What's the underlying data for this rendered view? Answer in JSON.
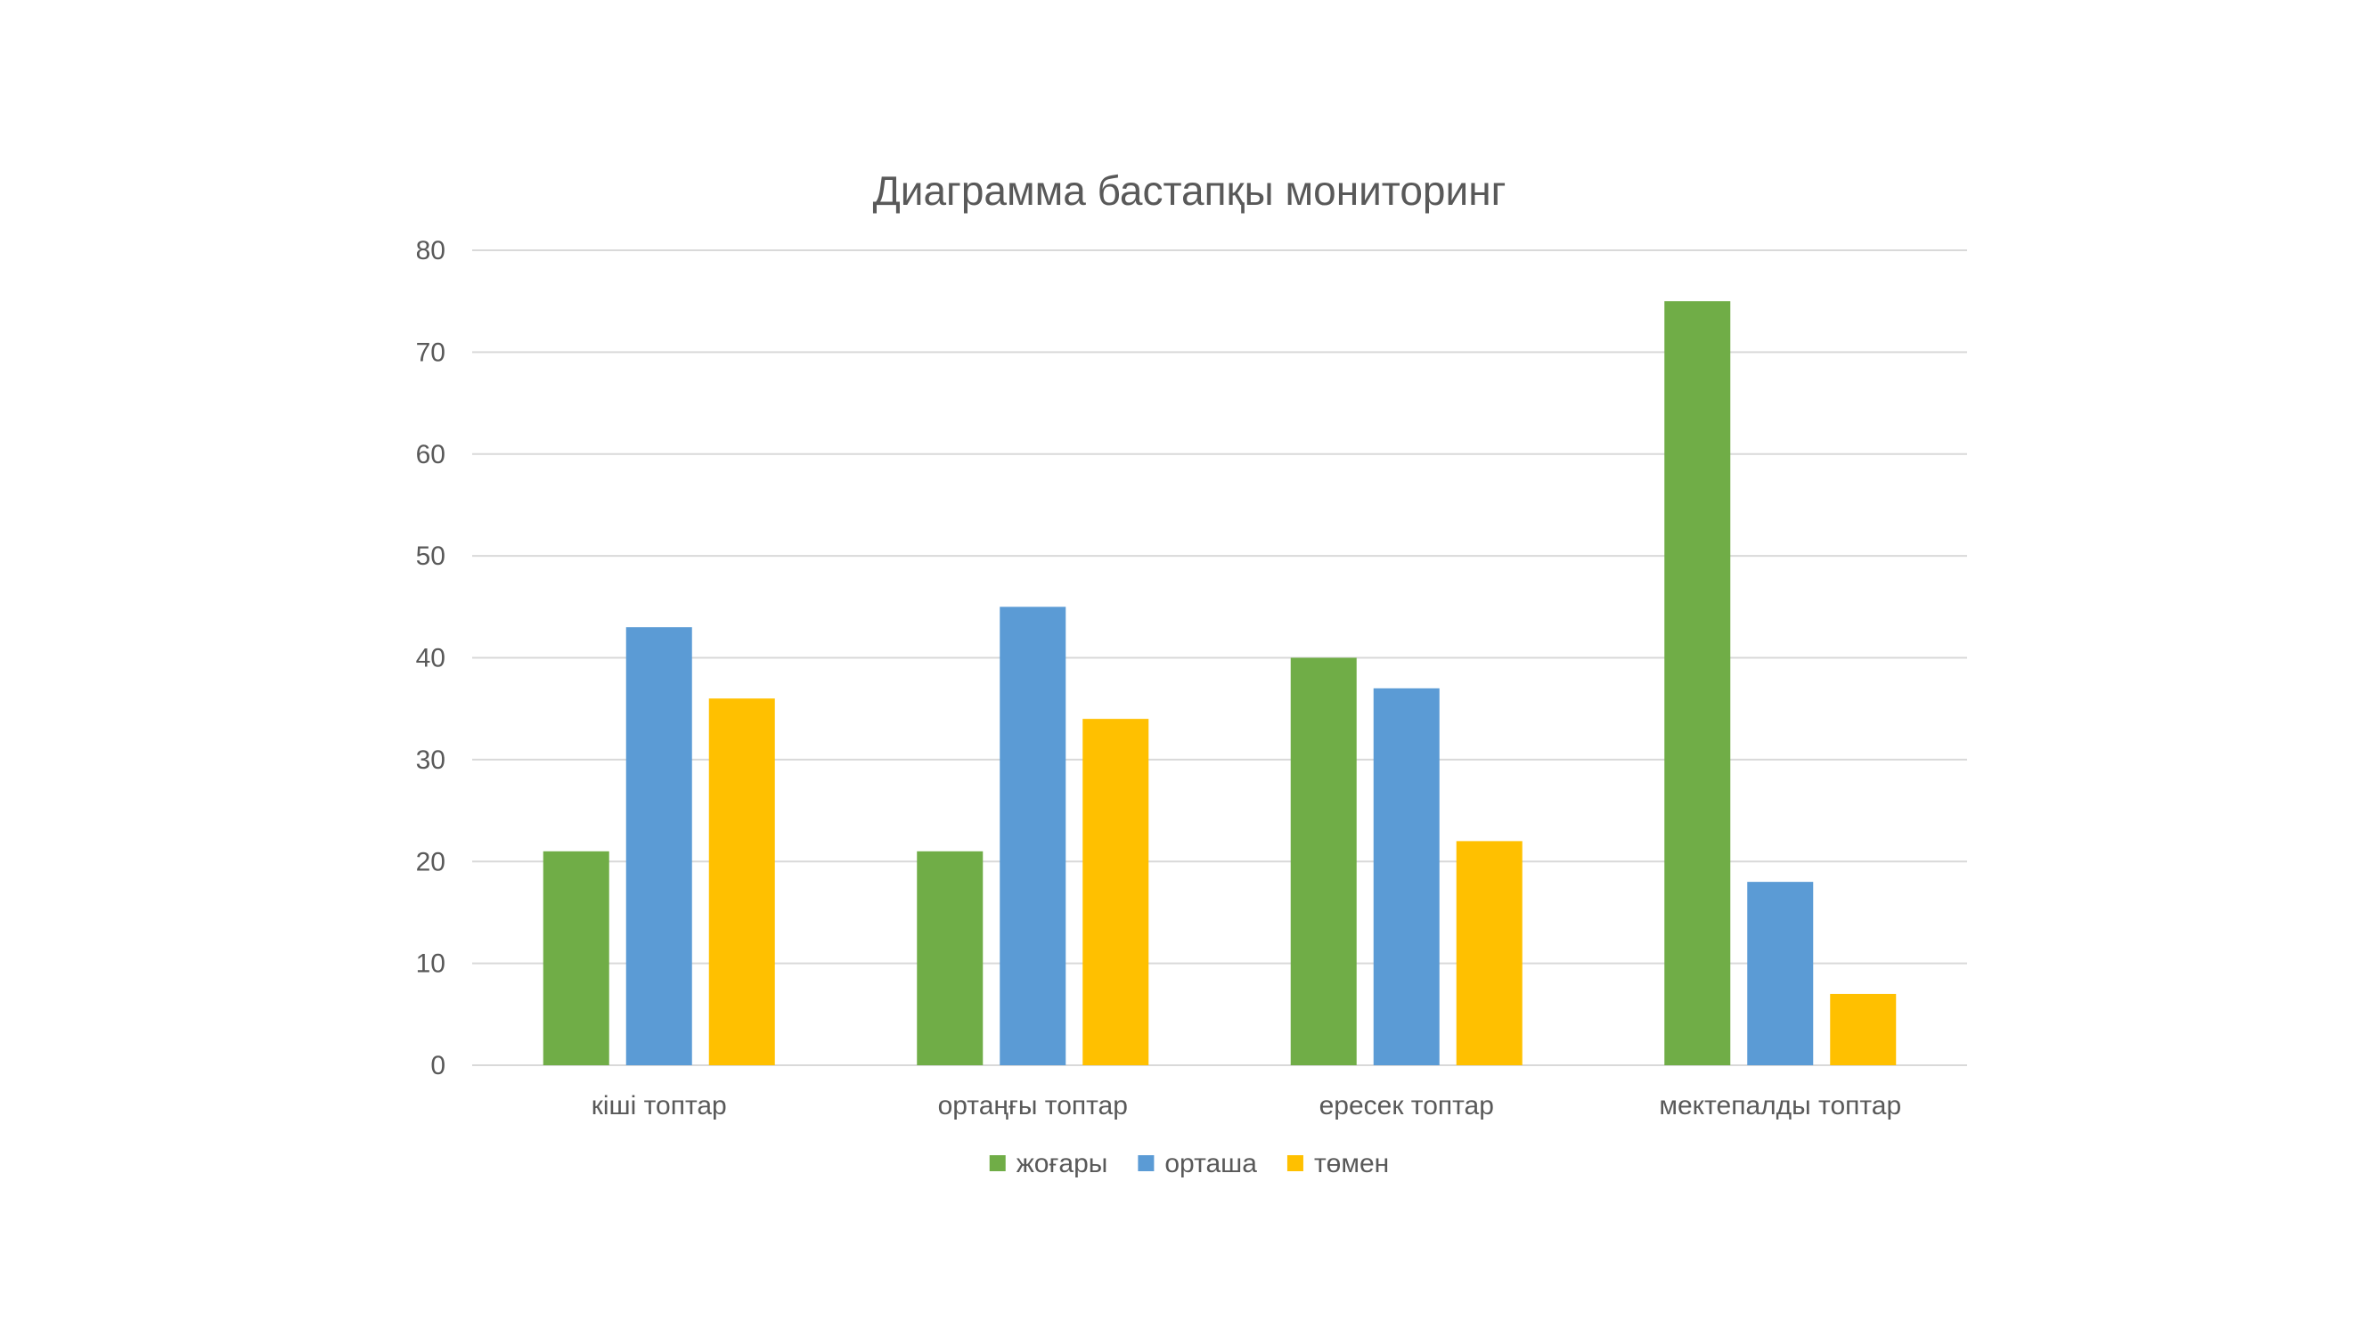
{
  "chart_data": {
    "type": "bar",
    "title": "Диаграмма бастапқы мониторинг",
    "categories": [
      "кіші топтар",
      "ортаңғы топтар",
      "ересек топтар",
      "мектепалды топтар"
    ],
    "series": [
      {
        "name": "жоғары",
        "color": "#70AD47",
        "values": [
          21,
          21,
          40,
          75
        ]
      },
      {
        "name": "орташа",
        "color": "#5B9BD5",
        "values": [
          43,
          45,
          37,
          18
        ]
      },
      {
        "name": "төмен",
        "color": "#FFC000",
        "values": [
          36,
          34,
          22,
          7
        ]
      }
    ],
    "ylim": [
      0,
      80
    ],
    "yticks": [
      0,
      10,
      20,
      30,
      40,
      50,
      60,
      70,
      80
    ],
    "grid": true,
    "legend_position": "bottom",
    "xlabel": "",
    "ylabel": ""
  }
}
